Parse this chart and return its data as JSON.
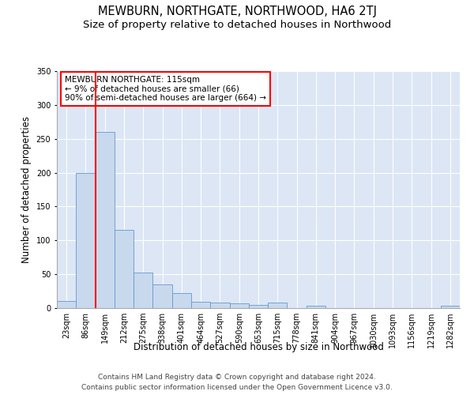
{
  "title": "MEWBURN, NORTHGATE, NORTHWOOD, HA6 2TJ",
  "subtitle": "Size of property relative to detached houses in Northwood",
  "xlabel": "Distribution of detached houses by size in Northwood",
  "ylabel": "Number of detached properties",
  "bar_color": "#c8d9ee",
  "bar_edge_color": "#6699cc",
  "background_color": "#dce6f5",
  "categories": [
    "23sqm",
    "86sqm",
    "149sqm",
    "212sqm",
    "275sqm",
    "338sqm",
    "401sqm",
    "464sqm",
    "527sqm",
    "590sqm",
    "653sqm",
    "715sqm",
    "778sqm",
    "841sqm",
    "904sqm",
    "967sqm",
    "1030sqm",
    "1093sqm",
    "1156sqm",
    "1219sqm",
    "1282sqm"
  ],
  "values": [
    10,
    200,
    260,
    115,
    52,
    35,
    22,
    9,
    8,
    7,
    5,
    8,
    0,
    4,
    0,
    0,
    0,
    0,
    0,
    0,
    3
  ],
  "red_line_x": 1.5,
  "ylim": [
    0,
    350
  ],
  "yticks": [
    0,
    50,
    100,
    150,
    200,
    250,
    300,
    350
  ],
  "annotation_title": "MEWBURN NORTHGATE: 115sqm",
  "annotation_line1": "← 9% of detached houses are smaller (66)",
  "annotation_line2": "90% of semi-detached houses are larger (664) →",
  "footer_line1": "Contains HM Land Registry data © Crown copyright and database right 2024.",
  "footer_line2": "Contains public sector information licensed under the Open Government Licence v3.0.",
  "title_fontsize": 10.5,
  "subtitle_fontsize": 9.5,
  "axis_label_fontsize": 8.5,
  "tick_fontsize": 7,
  "annotation_fontsize": 7.5,
  "footer_fontsize": 6.5
}
